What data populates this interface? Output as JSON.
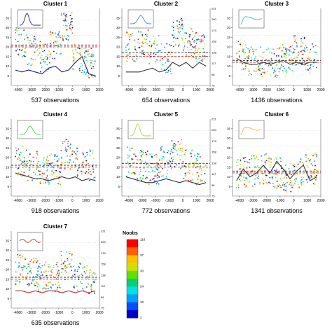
{
  "noobs_title": "Noobs",
  "colorbar_ticks": [
    "2",
    "10",
    "24",
    "30",
    "37",
    "116"
  ],
  "chart_data": [
    {
      "type": "scatter",
      "title": "Cluster 1",
      "caption": "537 observations",
      "xlim": [
        -4500,
        2000
      ],
      "ylim": [
        0,
        40
      ],
      "x_ticks": [
        -4000,
        -3000,
        -2000,
        -1000,
        0,
        1000,
        2000
      ],
      "y_ticks_left": [
        5,
        10,
        15,
        20,
        25,
        30,
        35
      ],
      "y_ticks_right": [
        "",
        "",
        "",
        "",
        "",
        "",
        ""
      ],
      "inset_color": "#1a1a9e",
      "line_color": "#1a1a9e",
      "density_shape": "peak-left",
      "scatter_level": [
        22,
        18,
        15,
        22,
        30,
        14,
        12
      ],
      "smooth_curve": [
        8,
        7,
        8,
        7,
        6,
        9,
        10,
        7,
        8,
        12,
        15,
        6,
        5
      ],
      "dashed_levels": [
        21,
        20
      ]
    },
    {
      "type": "scatter",
      "title": "Cluster 2",
      "caption": "654 observations",
      "xlim": [
        -4500,
        2000
      ],
      "ylim": [
        0,
        40
      ],
      "x_ticks": [
        -4000,
        -3000,
        -2000,
        -1000,
        0,
        1000,
        2000
      ],
      "y_ticks_left": [
        5,
        10,
        15,
        20,
        25,
        30,
        35
      ],
      "y_ticks_right": [
        "75",
        "96",
        "117",
        "138",
        "158",
        "179",
        "200",
        "221"
      ],
      "inset_color": "#3a8fd6",
      "line_color": "#333333",
      "density_shape": "peak-mid",
      "scatter_level": [
        20,
        24,
        18,
        14,
        28,
        22,
        20
      ],
      "smooth_curve": [
        7,
        7,
        7,
        8,
        9,
        7,
        8,
        12,
        10,
        12,
        9,
        12,
        10
      ],
      "dashed_levels": [
        17,
        15
      ]
    },
    {
      "type": "scatter",
      "title": "Cluster 3",
      "caption": "1436 observations",
      "xlim": [
        -4500,
        2000
      ],
      "ylim": [
        0,
        40
      ],
      "x_ticks": [
        -4000,
        -3000,
        -2000,
        -1000,
        0,
        1000,
        2000
      ],
      "y_ticks_left": [
        5,
        10,
        15,
        20,
        25,
        30,
        35
      ],
      "y_ticks_right": [
        "",
        "",
        "",
        "",
        "",
        "",
        ""
      ],
      "inset_color": "#30c9b8",
      "line_color": "#333333",
      "density_shape": "plateau",
      "scatter_level": [
        16,
        13,
        12,
        12,
        14,
        18,
        14
      ],
      "smooth_curve": [
        14,
        12,
        11,
        11,
        12,
        11,
        12,
        13,
        11,
        12,
        11,
        12,
        12
      ],
      "dashed_levels": [
        13,
        12
      ]
    },
    {
      "type": "scatter",
      "title": "Cluster 4",
      "caption": "918 observations",
      "xlim": [
        -4500,
        2000
      ],
      "ylim": [
        0,
        40
      ],
      "x_ticks": [
        -4000,
        -3000,
        -2000,
        -1000,
        0,
        1000,
        2000
      ],
      "y_ticks_left": [
        5,
        10,
        15,
        20,
        25,
        30,
        35
      ],
      "y_ticks_right": [
        "",
        "",
        "",
        "",
        "",
        "",
        ""
      ],
      "inset_color": "#4fcf4f",
      "line_color": "#333333",
      "density_shape": "peak-mid",
      "scatter_level": [
        18,
        16,
        14,
        14,
        22,
        18,
        16
      ],
      "smooth_curve": [
        12,
        11,
        10,
        9,
        9,
        8,
        9,
        10,
        9,
        10,
        8,
        9,
        8
      ],
      "dashed_levels": [
        16,
        15
      ]
    },
    {
      "type": "scatter",
      "title": "Cluster 5",
      "caption": "772 observations",
      "xlim": [
        -4500,
        2000
      ],
      "ylim": [
        0,
        40
      ],
      "x_ticks": [
        -4000,
        -3000,
        -2000,
        -1000,
        0,
        1000,
        2000
      ],
      "y_ticks_left": [
        5,
        10,
        15,
        20,
        25,
        30,
        35
      ],
      "y_ticks_right": [
        "75",
        "96",
        "117",
        "138",
        "158",
        "179",
        "200",
        "221"
      ],
      "inset_color": "#a8d92c",
      "line_color": "#333333",
      "density_shape": "peak-left",
      "scatter_level": [
        18,
        16,
        14,
        18,
        22,
        16,
        14
      ],
      "smooth_curve": [
        10,
        9,
        8,
        7,
        7,
        8,
        9,
        8,
        7,
        8,
        7,
        6,
        7
      ],
      "dashed_levels": [
        17,
        15
      ]
    },
    {
      "type": "scatter",
      "title": "Cluster 6",
      "caption": "1341 observations",
      "xlim": [
        -4500,
        2000
      ],
      "ylim": [
        0,
        40
      ],
      "x_ticks": [
        -4000,
        -3000,
        -2000,
        -1000,
        0,
        1000,
        2000
      ],
      "y_ticks_left": [
        5,
        10,
        15,
        20,
        25,
        30,
        35
      ],
      "y_ticks_right": [
        "",
        "",
        "",
        "",
        "",
        "",
        ""
      ],
      "inset_color": "#f0b83a",
      "line_color": "#333333",
      "density_shape": "plateau",
      "scatter_level": [
        12,
        13,
        14,
        12,
        10,
        12,
        14
      ],
      "smooth_curve": [
        8,
        14,
        10,
        12,
        16,
        12,
        18,
        14,
        9,
        13,
        16,
        8,
        10
      ],
      "dashed_levels": [
        13,
        12
      ]
    },
    {
      "type": "scatter",
      "title": "Cluster 7",
      "caption": "635 observations",
      "xlim": [
        -4500,
        2000
      ],
      "ylim": [
        0,
        40
      ],
      "x_ticks": [
        -4000,
        -3000,
        -2000,
        -1000,
        0,
        1000,
        2000
      ],
      "y_ticks_left": [
        5,
        10,
        15,
        20,
        25,
        30,
        35
      ],
      "y_ticks_right": [
        "75",
        "96",
        "117",
        "138",
        "158",
        "179",
        "200",
        "221"
      ],
      "inset_color": "#c8343a",
      "line_color": "#c8343a",
      "density_shape": "wave",
      "scatter_level": [
        20,
        18,
        16,
        16,
        22,
        16,
        14
      ],
      "smooth_curve": [
        9,
        9,
        8,
        9,
        8,
        9,
        9,
        8,
        9,
        8,
        9,
        8,
        9
      ],
      "dashed_levels": [
        16,
        15
      ]
    }
  ]
}
